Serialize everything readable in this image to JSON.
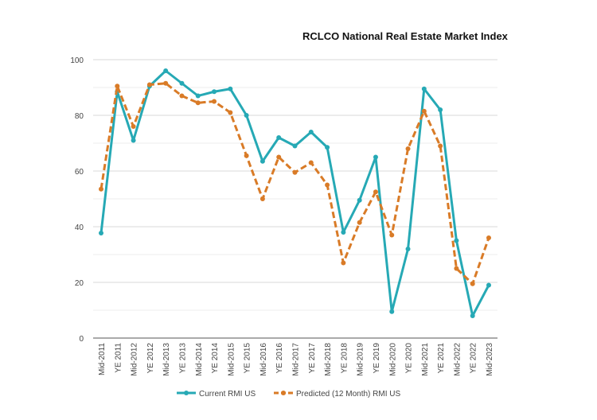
{
  "chart_data": {
    "type": "line",
    "title": "RCLCO National Real Estate Market Index",
    "xlabel": "",
    "ylabel": "",
    "ylim": [
      0,
      100
    ],
    "yticks": [
      "0",
      "20",
      "40",
      "60",
      "80",
      "100"
    ],
    "grid": true,
    "legend_position": "bottom",
    "categories": [
      "Mid-2011",
      "YE 2011",
      "Mid-2012",
      "YE 2012",
      "Mid-2013",
      "YE 2013",
      "Mid-2014",
      "YE 2014",
      "Mid-2015",
      "YE 2015",
      "Mid-2016",
      "YE 2016",
      "Mid-2017",
      "YE 2017",
      "Mid-2018",
      "YE 2018",
      "Mid-2019",
      "YE 2019",
      "Mid-2020",
      "YE 2020",
      "Mid-2021",
      "YE 2021",
      "Mid-2022",
      "YE 2022",
      "Mid-2023"
    ],
    "series": [
      {
        "name": "Current RMI US",
        "color": "#26a9b5",
        "style": "solid",
        "values": [
          37.7,
          88.5,
          71,
          90.5,
          96,
          91.5,
          87,
          88.5,
          89.5,
          80,
          63.5,
          72,
          69,
          74,
          68.5,
          38,
          49.5,
          65,
          9.5,
          32,
          89.5,
          82,
          35,
          8,
          19
        ]
      },
      {
        "name": "Predicted (12 Month) RMI US",
        "color": "#d97b27",
        "style": "dashed",
        "values": [
          53.5,
          90.5,
          76,
          91,
          91.5,
          87,
          84.5,
          85,
          81,
          65.5,
          50,
          65,
          59.5,
          63,
          55,
          27,
          41.5,
          52.5,
          37,
          68,
          81.5,
          69,
          25,
          19.5,
          36
        ]
      }
    ]
  }
}
